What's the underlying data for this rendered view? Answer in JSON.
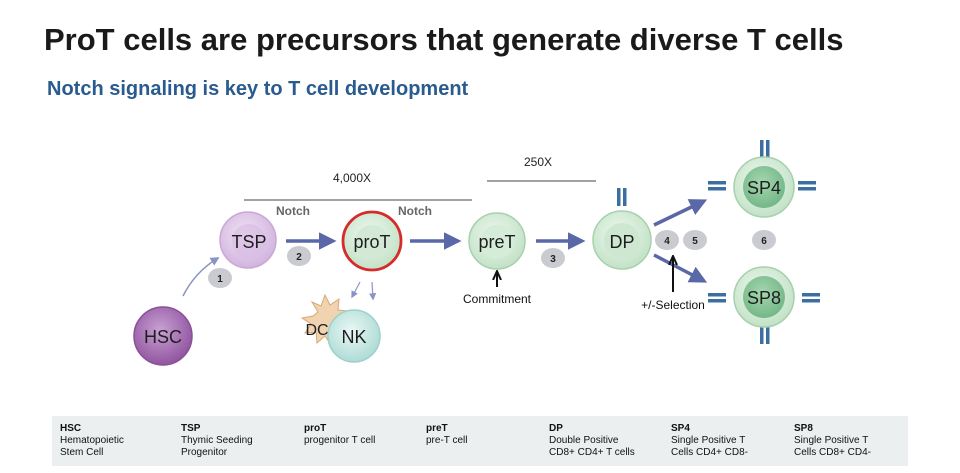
{
  "title": "ProT cells are precursors that generate diverse T cells",
  "subtitle": "Notch signaling is key to T cell development",
  "diagram": {
    "scale_labels": {
      "left": "4,000X",
      "right": "250X"
    },
    "notch_labels": [
      "Notch",
      "Notch"
    ],
    "cells": {
      "hsc": "HSC",
      "tsp": "TSP",
      "prot": "proT",
      "pret": "preT",
      "dp": "DP",
      "sp4": "SP4",
      "sp8": "SP8",
      "dc": "DC",
      "nk": "NK"
    },
    "steps": [
      "1",
      "2",
      "3",
      "4",
      "5",
      "6"
    ],
    "annotations": {
      "commitment": "Commitment",
      "selection": "+/-Selection"
    }
  },
  "legend": [
    {
      "abbr": "HSC",
      "desc": "Hematopoietic\nStem Cell"
    },
    {
      "abbr": "TSP",
      "desc": "Thymic Seeding\nProgenitor"
    },
    {
      "abbr": "proT",
      "desc": "progenitor T cell"
    },
    {
      "abbr": "preT",
      "desc": "pre-T cell"
    },
    {
      "abbr": "DP",
      "desc": "Double Positive\nCD8+ CD4+ T cells"
    },
    {
      "abbr": "SP4",
      "desc": "Single Positive T\nCells CD4+ CD8-"
    },
    {
      "abbr": "SP8",
      "desc": "Single Positive T\nCells CD8+ CD4-"
    }
  ],
  "colors": {
    "title": "#1a1a1a",
    "subtitle": "#2a5b8f",
    "arrow": "#5a68a8",
    "prot_ring": "#d62b2b",
    "hsc": "#a069ad",
    "tsp": "#dcc4e6",
    "cell_green": "#bfe0c3",
    "cell_green_core": "#7dbf8f",
    "nk": "#c7e7e3",
    "dc": "#f0d3b0",
    "receptor": "#3b6fa0",
    "step_badge": "#c9cbd0",
    "legend_bg": "#eceff0"
  }
}
